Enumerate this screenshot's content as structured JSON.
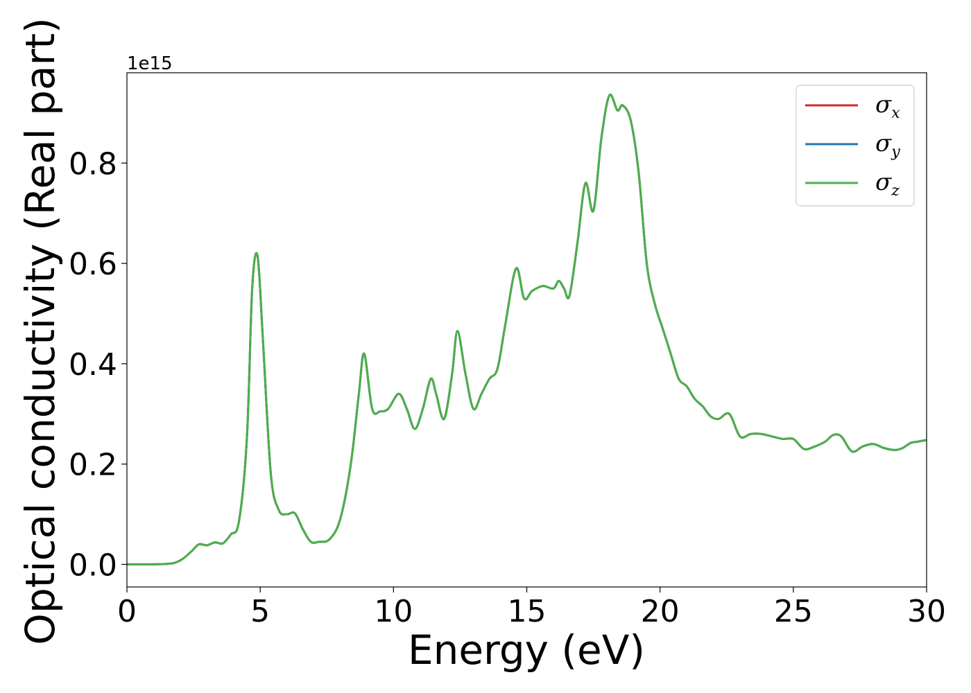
{
  "chart_data": {
    "type": "line",
    "title": "",
    "xlabel": "Energy (eV)",
    "ylabel": "Optical conductivity (Real part)",
    "y_offset_label": "1e15",
    "xlim": [
      0,
      30
    ],
    "ylim": [
      -0.045,
      0.98
    ],
    "xticks": [
      0,
      5,
      10,
      15,
      20,
      25,
      30
    ],
    "xtick_labels": [
      "0",
      "5",
      "10",
      "15",
      "20",
      "25",
      "30"
    ],
    "yticks": [
      0.0,
      0.2,
      0.4,
      0.6,
      0.8
    ],
    "ytick_labels": [
      "0.0",
      "0.2",
      "0.4",
      "0.6",
      "0.8"
    ],
    "grid": false,
    "legend_position": "top-right",
    "series": [
      {
        "name": "σx",
        "symbol": "σ",
        "subscript": "x",
        "color": "#d62728"
      },
      {
        "name": "σy",
        "symbol": "σ",
        "subscript": "y",
        "color": "#1f77b4"
      },
      {
        "name": "σz",
        "symbol": "σ",
        "subscript": "z",
        "color": "#4daf4a"
      }
    ],
    "x": [
      0,
      1.5,
      2.0,
      2.4,
      2.7,
      3.0,
      3.3,
      3.6,
      3.9,
      4.2,
      4.5,
      4.7,
      4.9,
      5.1,
      5.4,
      5.7,
      6.0,
      6.3,
      6.6,
      6.9,
      7.2,
      7.6,
      8.0,
      8.4,
      8.7,
      8.9,
      9.2,
      9.5,
      9.8,
      10.2,
      10.5,
      10.8,
      11.1,
      11.4,
      11.6,
      11.9,
      12.2,
      12.4,
      12.7,
      13.0,
      13.3,
      13.6,
      13.9,
      14.2,
      14.6,
      14.9,
      15.2,
      15.6,
      16.0,
      16.2,
      16.4,
      16.6,
      16.9,
      17.2,
      17.5,
      17.8,
      18.1,
      18.4,
      18.6,
      18.9,
      19.2,
      19.5,
      19.8,
      20.1,
      20.4,
      20.7,
      21.0,
      21.3,
      21.6,
      21.9,
      22.2,
      22.6,
      23.0,
      23.4,
      23.8,
      24.2,
      24.6,
      25.0,
      25.4,
      25.8,
      26.2,
      26.5,
      26.8,
      27.2,
      27.6,
      28.0,
      28.4,
      28.8,
      29.1,
      29.4,
      29.7,
      30.0
    ],
    "y": [
      0.0,
      0.001,
      0.008,
      0.025,
      0.04,
      0.038,
      0.044,
      0.042,
      0.06,
      0.085,
      0.25,
      0.55,
      0.615,
      0.45,
      0.18,
      0.108,
      0.1,
      0.102,
      0.07,
      0.045,
      0.045,
      0.05,
      0.09,
      0.2,
      0.34,
      0.42,
      0.31,
      0.305,
      0.31,
      0.34,
      0.31,
      0.27,
      0.31,
      0.37,
      0.34,
      0.29,
      0.38,
      0.465,
      0.38,
      0.31,
      0.34,
      0.37,
      0.39,
      0.48,
      0.59,
      0.53,
      0.545,
      0.555,
      0.55,
      0.565,
      0.55,
      0.535,
      0.64,
      0.76,
      0.705,
      0.85,
      0.935,
      0.905,
      0.915,
      0.885,
      0.78,
      0.6,
      0.52,
      0.47,
      0.42,
      0.37,
      0.355,
      0.33,
      0.315,
      0.295,
      0.29,
      0.3,
      0.255,
      0.26,
      0.26,
      0.255,
      0.25,
      0.25,
      0.23,
      0.235,
      0.245,
      0.258,
      0.255,
      0.225,
      0.235,
      0.24,
      0.232,
      0.228,
      0.232,
      0.242,
      0.245,
      0.248
    ]
  }
}
